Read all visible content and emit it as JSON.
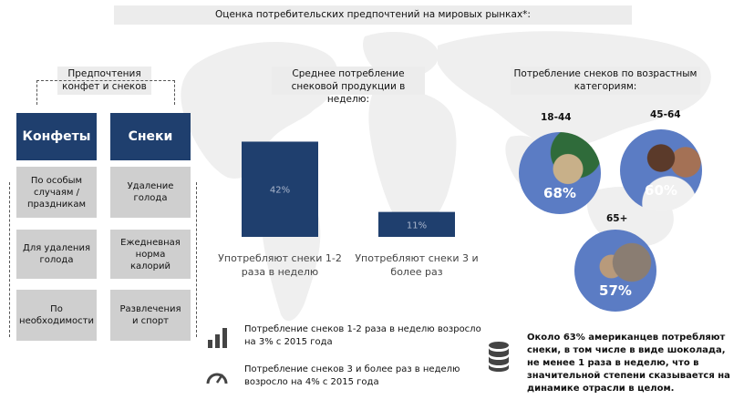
{
  "title": "Оценка потребительских предпочтений на мировых рынках*:",
  "left": {
    "header": "Предпочтения конфет и снеков",
    "columns": [
      {
        "label": "Конфеты",
        "items": [
          "По особым случаям / праздникам",
          "Для удаления голода",
          "По необходимости"
        ]
      },
      {
        "label": "Снеки",
        "items": [
          "Удаление голода",
          "Ежедневная норма калорий",
          "Развлечения и спорт"
        ]
      }
    ]
  },
  "middle": {
    "header": "Среднее потребление снековой продукции в неделю:"
  },
  "chart_data": {
    "type": "bar",
    "categories": [
      "Употребляют снеки 1-2 раза в неделю",
      "Употребляют снеки 3 и более раз"
    ],
    "values": [
      42,
      11
    ],
    "value_labels": [
      "42%",
      "11%"
    ],
    "ylim": [
      0,
      45
    ],
    "color": "#1f3f6e"
  },
  "right": {
    "header": "Потребление снеков по возрастным категориям:",
    "age_groups": [
      {
        "label": "18-44",
        "value": "68%"
      },
      {
        "label": "45-64",
        "value": "60%"
      },
      {
        "label": "65+",
        "value": "57%"
      }
    ]
  },
  "notes": {
    "growth_1": "Потребление снеков 1-2 раза в неделю возросло на 3% с 2015 года",
    "growth_2": "Потребление снеков 3 и более раз в неделю возросло на 4% с 2015 года",
    "americans": "Около 63% американцев потребляют снеки, в том числе в виде шоколада, не менее 1 раза в неделю, что в значительной степени сказывается на динамике отрасли в целом."
  },
  "colors": {
    "dark_blue": "#1f3f6e",
    "grey_box": "#cfcfcf",
    "header_bg": "#ececec",
    "photo_blue": "#5b7cc4"
  },
  "icons": [
    "bar-chart-icon",
    "gauge-icon",
    "database-icon"
  ]
}
